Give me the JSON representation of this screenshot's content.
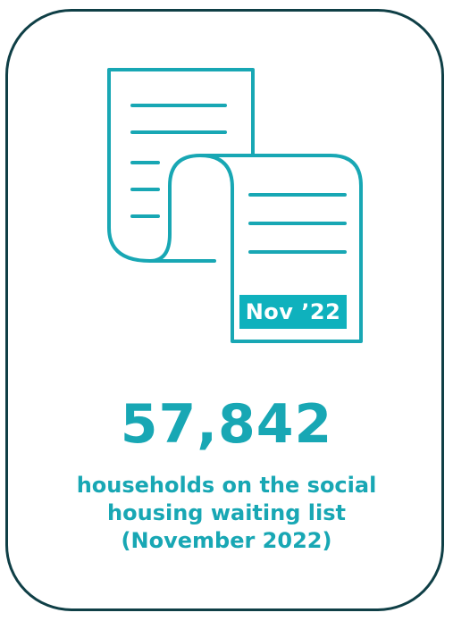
{
  "colors": {
    "accent": "#18a7b4",
    "badge_background": "#0fb1bd",
    "border": "#0f3f46",
    "background": "#ffffff"
  },
  "icon": {
    "name": "document-scroll-icon",
    "badge_text": "Nov ’22"
  },
  "stat": {
    "value": "57,842",
    "caption_lines": [
      "households on the social",
      "housing waiting list",
      "(November 2022)"
    ]
  }
}
